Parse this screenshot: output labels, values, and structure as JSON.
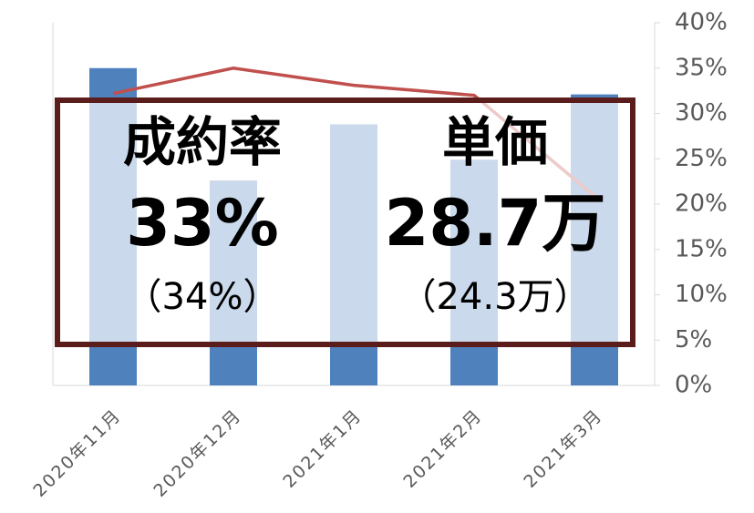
{
  "chart_data": {
    "type": "bar_line",
    "categories": [
      "2020年11月",
      "2020年12月",
      "2021年1月",
      "2021年2月",
      "2021年3月"
    ],
    "series": [
      {
        "type": "bar",
        "color": "#4f81bd",
        "values": [
          35.0,
          22.6,
          28.8,
          24.9,
          32.1
        ]
      },
      {
        "type": "line",
        "color": "#c0504d",
        "values": [
          32.2,
          35.0,
          33.1,
          32.0,
          20.9
        ]
      }
    ],
    "ylim": [
      0,
      40
    ],
    "yticks": [
      {
        "value": 0,
        "label": "0%"
      },
      {
        "value": 5,
        "label": "5%"
      },
      {
        "value": 10,
        "label": "10%"
      },
      {
        "value": 15,
        "label": "15%"
      },
      {
        "value": 20,
        "label": "20%"
      },
      {
        "value": 25,
        "label": "25%"
      },
      {
        "value": 30,
        "label": "30%"
      },
      {
        "value": 35,
        "label": "35%"
      },
      {
        "value": 40,
        "label": "40%"
      }
    ],
    "annotations": {
      "left": {
        "label": "成約率",
        "value": "33%",
        "sub": "（34%）"
      },
      "right": {
        "label": "単価",
        "value": "28.7万",
        "sub": "（24.3万）"
      }
    }
  }
}
